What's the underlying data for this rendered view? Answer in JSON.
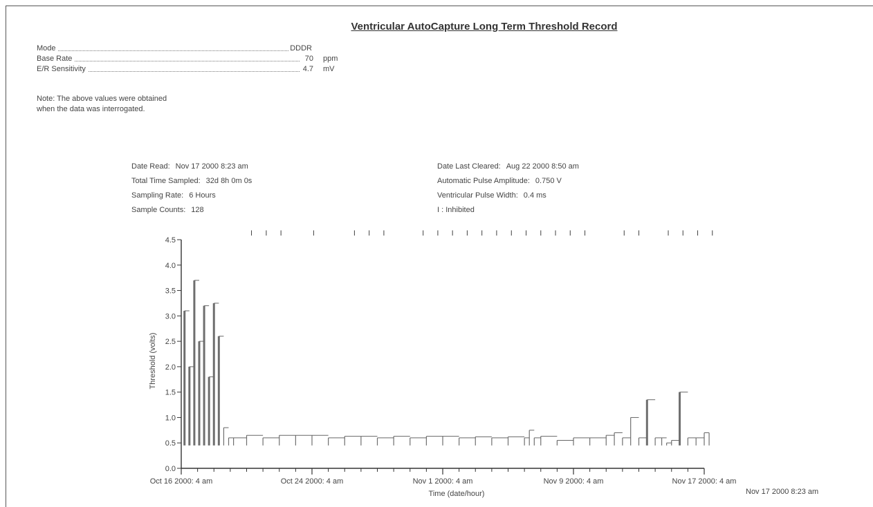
{
  "report": {
    "title": "Ventricular AutoCapture Long Term Threshold Record",
    "params": [
      {
        "name": "Mode",
        "value": "DDDR",
        "unit": ""
      },
      {
        "name": "Base Rate",
        "value": "70",
        "unit": "ppm"
      },
      {
        "name": "E/R Sensitivity",
        "value": "4.7",
        "unit": "mV"
      }
    ],
    "note_line1": "Note: The above values were obtained",
    "note_line2": "when the data was interrogated.",
    "info_left": [
      {
        "key": "Date Read:",
        "value": "Nov 17 2000 8:23 am"
      },
      {
        "key": "Total Time Sampled:",
        "value": "32d 8h 0m 0s"
      },
      {
        "key": "Sampling Rate:",
        "value": "6 Hours"
      },
      {
        "key": "Sample Counts:",
        "value": "128"
      }
    ],
    "info_right": [
      {
        "key": "Date Last Cleared:",
        "value": "Aug 22 2000 8:50 am"
      },
      {
        "key": "Automatic Pulse Amplitude:",
        "value": "0.750 V"
      },
      {
        "key": "Ventricular Pulse Width:",
        "value": "0.4 ms"
      },
      {
        "key": "I : Inhibited",
        "value": ""
      }
    ],
    "corner_stamp": "Nov 17 2000 8:23 am"
  },
  "chart_data": {
    "type": "line",
    "title": "Ventricular AutoCapture Long Term Threshold Record",
    "xlabel": "Time (date/hour)",
    "ylabel": "Threshold (volts)",
    "ylim": [
      0.0,
      4.5
    ],
    "yticks": [
      "0.0",
      "0.5",
      "1.0",
      "1.5",
      "2.0",
      "2.5",
      "3.0",
      "3.5",
      "4.0",
      "4.5"
    ],
    "xlim_days": [
      0,
      32
    ],
    "xticks": [
      {
        "label": "Oct 16 2000: 4 am",
        "day": 0
      },
      {
        "label": "Oct 24 2000: 4 am",
        "day": 8
      },
      {
        "label": "Nov 1 2000: 4 am",
        "day": 16
      },
      {
        "label": "Nov 9 2000: 4 am",
        "day": 24
      },
      {
        "label": "Nov 17 2000: 4 am",
        "day": 32
      }
    ],
    "grid": false,
    "inhibited_marker": "I",
    "inhibited_days": [
      4.3,
      5.2,
      6.1,
      8.1,
      10.6,
      11.5,
      12.4,
      14.8,
      15.7,
      16.6,
      17.5,
      18.4,
      19.3,
      20.2,
      21.1,
      22.0,
      22.9,
      23.8,
      24.7,
      27.1,
      28.0,
      29.8,
      30.7,
      31.6,
      32.5
    ],
    "series": [
      {
        "values_day": [
          0.2,
          0.5,
          0.8,
          1.1,
          1.4,
          1.7,
          2.0,
          2.3,
          2.6,
          2.9,
          3.2,
          4.0,
          5.0,
          6.0,
          7.0,
          8.0,
          9.0,
          10.0,
          11.0,
          12.0,
          13.0,
          14.0,
          15.0,
          16.0,
          17.0,
          18.0,
          19.0,
          20.0,
          21.0,
          21.3,
          21.6,
          22.0,
          23.0,
          24.0,
          25.0,
          26.0,
          26.5,
          27.0,
          27.5,
          28.0,
          28.5,
          29.0,
          29.4,
          29.7,
          30.0,
          30.5,
          31.0,
          31.5,
          32.0,
          32.3
        ],
        "values_v": [
          3.1,
          2.0,
          3.7,
          2.5,
          3.2,
          1.8,
          3.25,
          2.6,
          0.8,
          0.6,
          0.6,
          0.65,
          0.6,
          0.65,
          0.65,
          0.65,
          0.6,
          0.63,
          0.63,
          0.6,
          0.63,
          0.6,
          0.63,
          0.63,
          0.6,
          0.62,
          0.6,
          0.62,
          0.6,
          0.75,
          0.6,
          0.63,
          0.55,
          0.6,
          0.6,
          0.65,
          0.7,
          0.6,
          1.0,
          0.6,
          1.35,
          0.6,
          0.6,
          0.5,
          0.55,
          1.5,
          0.6,
          0.6,
          0.7,
          0.7
        ]
      }
    ]
  }
}
